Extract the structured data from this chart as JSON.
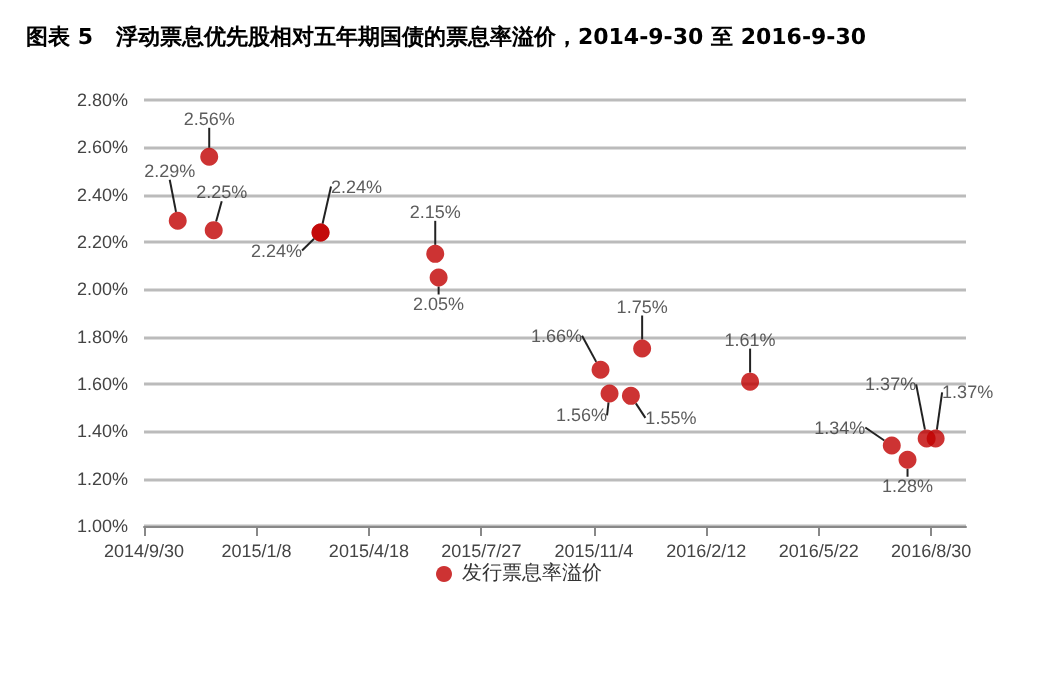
{
  "chart_data": {
    "type": "scatter",
    "title": "图表 5   浮动票息优先股相对五年期国债的票息率溢价，2014-9-30 至 2016-9-30",
    "x": [
      "2014-10-30",
      "2014-11-27",
      "2014-12-01",
      "2015-03-06",
      "2015-03-06",
      "2015-06-16",
      "2015-06-19",
      "2015-11-10",
      "2015-11-18",
      "2015-12-07",
      "2015-12-17",
      "2016-03-22",
      "2016-07-26",
      "2016-08-09",
      "2016-08-26",
      "2016-09-03"
    ],
    "series": [
      {
        "name": "发行票息率溢价",
        "color": "#c00000",
        "values": [
          2.29,
          2.56,
          2.25,
          2.24,
          2.24,
          2.15,
          2.05,
          1.66,
          1.56,
          1.55,
          1.75,
          1.61,
          1.34,
          1.28,
          1.37,
          1.37
        ],
        "value_labels": [
          "2.29%",
          "2.56%",
          "2.25%",
          "2.24%",
          "2.24%",
          "2.15%",
          "2.05%",
          "1.66%",
          "1.56%",
          "1.55%",
          "1.75%",
          "1.61%",
          "1.34%",
          "1.28%",
          "1.37%",
          "1.37%"
        ]
      }
    ],
    "xlim": [
      "2014-09-30",
      "2016-09-30"
    ],
    "xticks": [
      {
        "value": "2014-09-30",
        "label": "2014/9/30"
      },
      {
        "value": "2015-01-08",
        "label": "2015/1/8"
      },
      {
        "value": "2015-04-18",
        "label": "2015/4/18"
      },
      {
        "value": "2015-07-27",
        "label": "2015/7/27"
      },
      {
        "value": "2015-11-04",
        "label": "2015/11/4"
      },
      {
        "value": "2016-02-12",
        "label": "2016/2/12"
      },
      {
        "value": "2016-05-22",
        "label": "2016/5/22"
      },
      {
        "value": "2016-08-30",
        "label": "2016/8/30"
      }
    ],
    "ylim": [
      1.0,
      2.8
    ],
    "yticks": [
      {
        "value": 1.0,
        "label": "1.00%"
      },
      {
        "value": 1.2,
        "label": "1.20%"
      },
      {
        "value": 1.4,
        "label": "1.40%"
      },
      {
        "value": 1.6,
        "label": "1.60%"
      },
      {
        "value": 1.8,
        "label": "1.80%"
      },
      {
        "value": 2.0,
        "label": "2.00%"
      },
      {
        "value": 2.2,
        "label": "2.20%"
      },
      {
        "value": 2.4,
        "label": "2.40%"
      },
      {
        "value": 2.6,
        "label": "2.60%"
      },
      {
        "value": 2.8,
        "label": "2.80%"
      }
    ],
    "grid": "y",
    "legend": "bottom",
    "marker": "circle"
  }
}
